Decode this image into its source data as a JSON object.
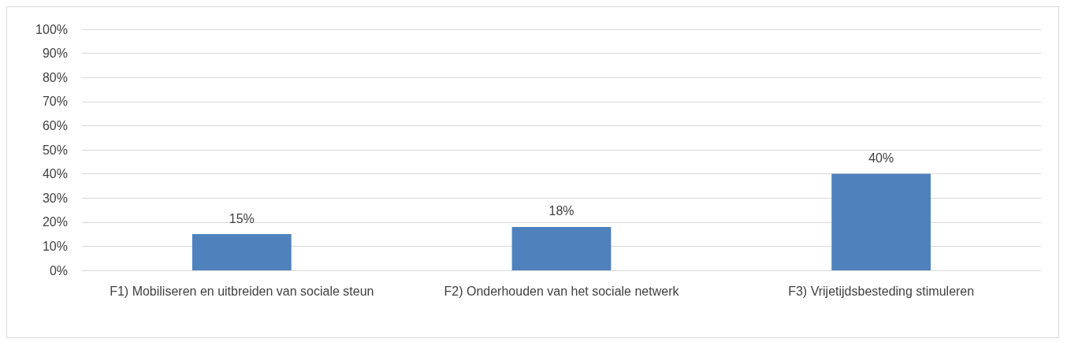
{
  "chart_data": {
    "type": "bar",
    "categories": [
      "F1) Mobiliseren en uitbreiden van sociale steun",
      "F2) Onderhouden van het sociale netwerk",
      "F3) Vrijetijdsbesteding stimuleren"
    ],
    "values": [
      15,
      18,
      40
    ],
    "color": "#4f81bd",
    "value_labels": [
      "15%",
      "18%",
      "40%"
    ],
    "ylim": [
      0,
      100
    ],
    "yticks": [
      {
        "value": 0,
        "label": "0%"
      },
      {
        "value": 10,
        "label": "10%"
      },
      {
        "value": 20,
        "label": "20%"
      },
      {
        "value": 30,
        "label": "30%"
      },
      {
        "value": 40,
        "label": "40%"
      },
      {
        "value": 50,
        "label": "50%"
      },
      {
        "value": 60,
        "label": "60%"
      },
      {
        "value": 70,
        "label": "70%"
      },
      {
        "value": 80,
        "label": "80%"
      },
      {
        "value": 90,
        "label": "90%"
      },
      {
        "value": 100,
        "label": "100%"
      }
    ],
    "grid": "y"
  }
}
